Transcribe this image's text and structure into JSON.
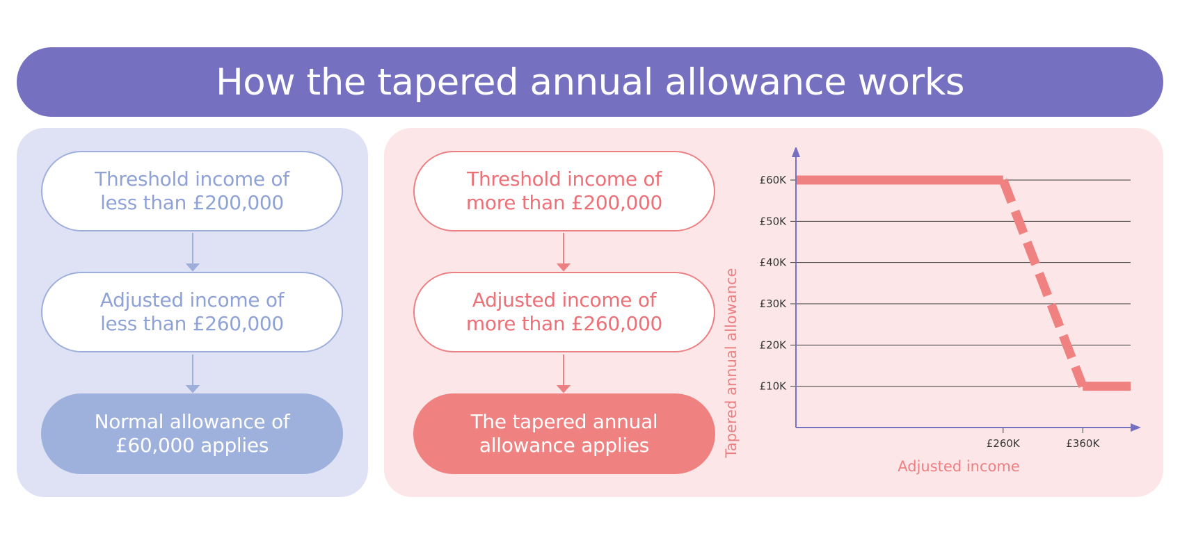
{
  "title": "How the tapered annual allowance works",
  "left_flow": {
    "step1": "Threshold income of\nless than £200,000",
    "step2": "Adjusted income of\nless than £260,000",
    "result": "Normal allowance of\n£60,000 applies"
  },
  "right_flow": {
    "step1": "Threshold income of\nmore than £200,000",
    "step2": "Adjusted income of\nmore than £260,000",
    "result": "The tapered annual\nallowance applies"
  },
  "colors": {
    "banner": "#7571c0",
    "blue_fill": "#9eb1dc",
    "red_fill": "#f08181",
    "axis": "#7571c0"
  },
  "chart_data": {
    "type": "line",
    "xlabel": "Adjusted income",
    "ylabel": "Tapered annual allowance",
    "x_ticks": [
      {
        "value": 260000,
        "label": "£260K"
      },
      {
        "value": 360000,
        "label": "£360K"
      }
    ],
    "y_ticks": [
      {
        "value": 60000,
        "label": "£60K"
      },
      {
        "value": 50000,
        "label": "£50K"
      },
      {
        "value": 40000,
        "label": "£40K"
      },
      {
        "value": 30000,
        "label": "£30K"
      },
      {
        "value": 20000,
        "label": "£20K"
      },
      {
        "value": 10000,
        "label": "£10K"
      }
    ],
    "xlim": [
      0,
      420000
    ],
    "ylim": [
      0,
      60000
    ],
    "grid": true,
    "series": [
      {
        "values_solid": [
          [
            0,
            60000
          ],
          [
            260000,
            60000
          ]
        ]
      },
      {
        "values_dashed": [
          [
            260000,
            60000
          ],
          [
            360000,
            10000
          ]
        ]
      },
      {
        "values_solid_end": [
          [
            360000,
            10000
          ],
          [
            420000,
            10000
          ]
        ]
      }
    ]
  }
}
